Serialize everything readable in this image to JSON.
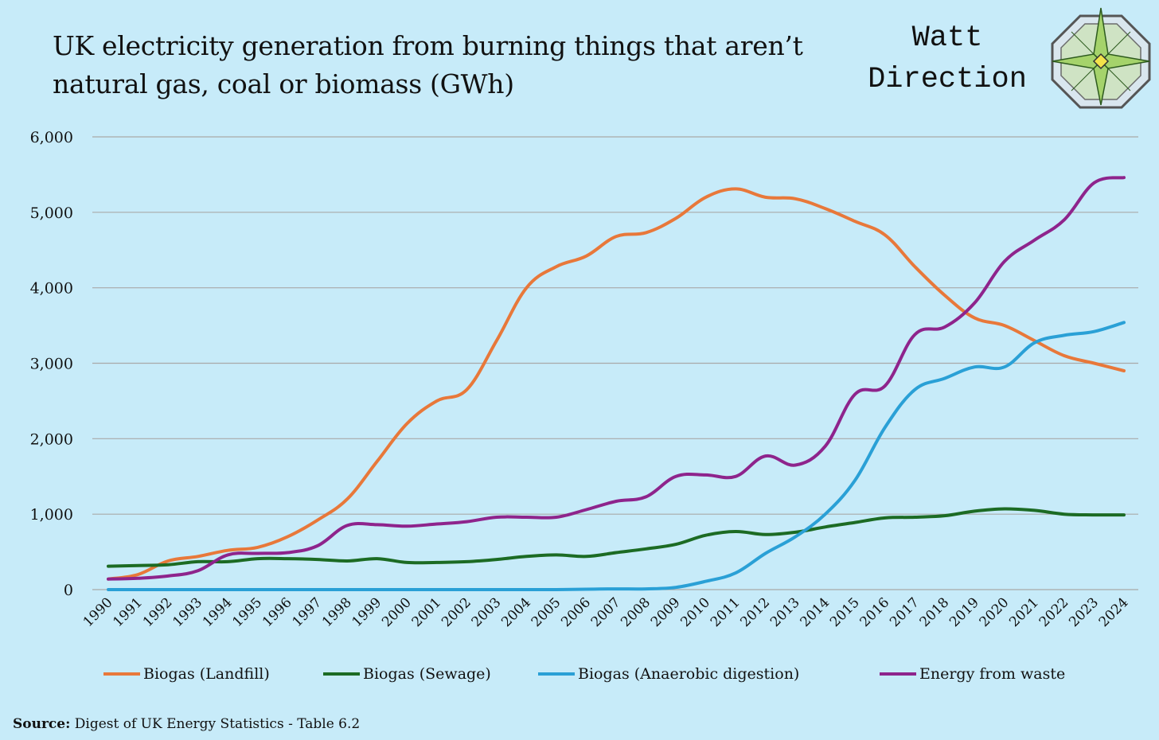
{
  "title": "UK electricity generation from burning things that aren’t natural gas, coal or biomass (GWh)",
  "brand": {
    "line1": "Watt",
    "line2": "Direction"
  },
  "source": {
    "label": "Source:",
    "text": "Digest of UK Energy Statistics - Table 6.2"
  },
  "colors": {
    "background": "#c7ebf9",
    "grid": "#a9a9a9",
    "landfill": "#e8783a",
    "sewage": "#1c6b24",
    "anaerobic": "#2aa0d6",
    "waste": "#8e248c"
  },
  "chart_data": {
    "type": "line",
    "title": "UK electricity generation from burning things that aren’t natural gas, coal or biomass (GWh)",
    "xlabel": "",
    "ylabel": "",
    "ylim": [
      0,
      6000
    ],
    "yticks": [
      0,
      1000,
      2000,
      3000,
      4000,
      5000,
      6000
    ],
    "ytick_labels": [
      "0",
      "1,000",
      "2,000",
      "3,000",
      "4,000",
      "5,000",
      "6,000"
    ],
    "grid": true,
    "legend_position": "bottom",
    "categories": [
      "1990",
      "1991",
      "1992",
      "1993",
      "1994",
      "1995",
      "1996",
      "1997",
      "1998",
      "1999",
      "2000",
      "2001",
      "2002",
      "2003",
      "2004",
      "2005",
      "2006",
      "2007",
      "2008",
      "2009",
      "2010",
      "2011",
      "2012",
      "2013",
      "2014",
      "2015",
      "2016",
      "2017",
      "2018",
      "2019",
      "2020",
      "2021",
      "2022",
      "2023",
      "2024"
    ],
    "series": [
      {
        "name": "Biogas (Landfill)",
        "color_key": "landfill",
        "values": [
          140,
          200,
          380,
          440,
          520,
          560,
          700,
          920,
          1200,
          1700,
          2200,
          2500,
          2650,
          3300,
          4000,
          4280,
          4420,
          4680,
          4730,
          4920,
          5200,
          5310,
          5200,
          5180,
          5050,
          4880,
          4700,
          4280,
          3900,
          3600,
          3500,
          3300,
          3100,
          3000,
          2900
        ]
      },
      {
        "name": "Biogas (Sewage)",
        "color_key": "sewage",
        "values": [
          310,
          320,
          330,
          370,
          370,
          410,
          410,
          400,
          380,
          410,
          360,
          360,
          370,
          400,
          440,
          460,
          440,
          490,
          540,
          600,
          720,
          770,
          730,
          760,
          830,
          890,
          950,
          960,
          980,
          1040,
          1070,
          1050,
          1000,
          990,
          990
        ]
      },
      {
        "name": "Biogas (Anaerobic digestion)",
        "color_key": "anaerobic",
        "values": [
          0,
          0,
          0,
          0,
          0,
          0,
          0,
          0,
          0,
          0,
          0,
          0,
          0,
          0,
          0,
          0,
          5,
          10,
          10,
          30,
          110,
          220,
          480,
          700,
          1000,
          1450,
          2150,
          2650,
          2800,
          2950,
          2950,
          3270,
          3370,
          3420,
          3540
        ]
      },
      {
        "name": "Energy from waste",
        "color_key": "waste",
        "values": [
          140,
          150,
          180,
          250,
          460,
          480,
          490,
          580,
          850,
          860,
          840,
          870,
          900,
          960,
          960,
          960,
          1060,
          1170,
          1230,
          1500,
          1520,
          1500,
          1770,
          1650,
          1900,
          2590,
          2700,
          3380,
          3480,
          3800,
          4350,
          4630,
          4900,
          5390,
          5460
        ]
      }
    ]
  }
}
